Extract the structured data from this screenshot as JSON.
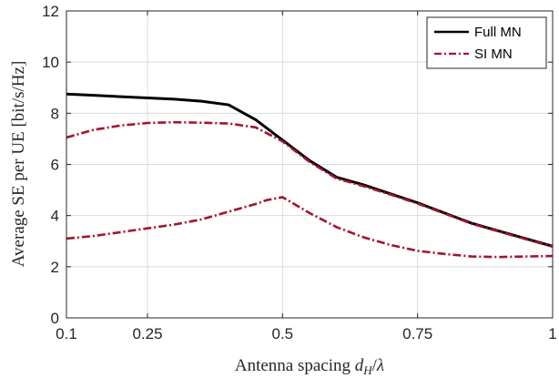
{
  "chart_data": {
    "type": "line",
    "xlabel": "Antenna spacing d_H/λ",
    "ylabel": "Average SE per UE [bit/s/Hz]",
    "xlim": [
      0.1,
      1
    ],
    "ylim": [
      0,
      12
    ],
    "xticks": [
      0.1,
      0.25,
      0.5,
      0.75,
      1
    ],
    "xtick_labels": [
      "0.1",
      "0.25",
      "0.5",
      "0.75",
      "1"
    ],
    "yticks": [
      0,
      2,
      4,
      6,
      8,
      10,
      12
    ],
    "ytick_labels": [
      "0",
      "2",
      "4",
      "6",
      "8",
      "10",
      "12"
    ],
    "grid": true,
    "legend_position": "top-right",
    "legend": [
      "Full MN",
      "SI MN"
    ],
    "colors": {
      "full": "#000000",
      "si": "#a2142f"
    },
    "series": [
      {
        "name": "Full MN",
        "style": "solid",
        "x": [
          0.1,
          0.15,
          0.2,
          0.25,
          0.3,
          0.35,
          0.4,
          0.45,
          0.5,
          0.55,
          0.6,
          0.65,
          0.7,
          0.75,
          0.8,
          0.85,
          0.9,
          0.95,
          1.0
        ],
        "y": [
          8.75,
          8.7,
          8.65,
          8.6,
          8.55,
          8.47,
          8.33,
          7.75,
          6.95,
          6.15,
          5.5,
          5.2,
          4.85,
          4.5,
          4.1,
          3.7,
          3.4,
          3.1,
          2.8
        ]
      },
      {
        "name": "SI MN",
        "style": "dashdot",
        "x": [
          0.1,
          0.15,
          0.2,
          0.25,
          0.3,
          0.35,
          0.4,
          0.45,
          0.5,
          0.55,
          0.6,
          0.65,
          0.7,
          0.75,
          0.8,
          0.85,
          0.9,
          0.95,
          1.0
        ],
        "y": [
          7.05,
          7.35,
          7.52,
          7.62,
          7.65,
          7.63,
          7.6,
          7.45,
          6.9,
          6.1,
          5.45,
          5.15,
          4.82,
          4.47,
          4.08,
          3.68,
          3.38,
          3.08,
          2.78
        ]
      },
      {
        "style": "dashdot",
        "x": [
          0.1,
          0.15,
          0.2,
          0.25,
          0.3,
          0.35,
          0.4,
          0.45,
          0.47,
          0.5,
          0.55,
          0.6,
          0.65,
          0.7,
          0.75,
          0.8,
          0.85,
          0.9,
          0.95,
          1.0
        ],
        "y": [
          3.1,
          3.2,
          3.35,
          3.5,
          3.65,
          3.85,
          4.15,
          4.45,
          4.6,
          4.72,
          4.1,
          3.55,
          3.15,
          2.85,
          2.62,
          2.5,
          2.4,
          2.38,
          2.4,
          2.42
        ]
      }
    ]
  }
}
